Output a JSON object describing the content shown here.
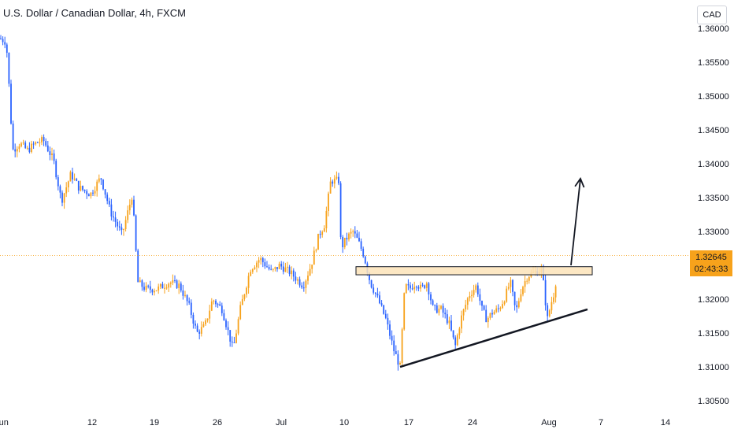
{
  "header": {
    "title": "U.S. Dollar / Canadian Dollar, 4h, FXCM",
    "currency_button": "CAD"
  },
  "price_tag": {
    "price": "1.32645",
    "countdown": "02:43:33"
  },
  "colors": {
    "up": "#f7a21b",
    "down": "#2962ff",
    "priceLine": "#f7a21b",
    "zoneFill": "#fbe3b8",
    "trendline": "#131722"
  },
  "chart_data": {
    "type": "candlestick",
    "title": "U.S. Dollar / Canadian Dollar, 4h, FXCM",
    "x_tick_labels": [
      "Jun",
      "12",
      "19",
      "26",
      "Jul",
      "10",
      "17",
      "24",
      "Aug",
      "7",
      "14"
    ],
    "y_tick_labels": [
      "1.36000",
      "1.35500",
      "1.35000",
      "1.34500",
      "1.34000",
      "1.33500",
      "1.33000",
      "1.32500",
      "1.32000",
      "1.31500",
      "1.31000",
      "1.30500"
    ],
    "ylim": [
      1.3035,
      1.3615
    ],
    "current_price": 1.32645,
    "price_path": [
      [
        0,
        1.3585
      ],
      [
        8,
        1.358
      ],
      [
        12,
        1.3505
      ],
      [
        16,
        1.342
      ],
      [
        25,
        1.343
      ],
      [
        35,
        1.342
      ],
      [
        45,
        1.343
      ],
      [
        55,
        1.3435
      ],
      [
        68,
        1.3405
      ],
      [
        78,
        1.3345
      ],
      [
        90,
        1.3385
      ],
      [
        100,
        1.3365
      ],
      [
        115,
        1.3355
      ],
      [
        128,
        1.338
      ],
      [
        140,
        1.333
      ],
      [
        155,
        1.3295
      ],
      [
        168,
        1.3355
      ],
      [
        175,
        1.3225
      ],
      [
        185,
        1.3215
      ],
      [
        200,
        1.3215
      ],
      [
        215,
        1.3225
      ],
      [
        228,
        1.322
      ],
      [
        240,
        1.319
      ],
      [
        250,
        1.315
      ],
      [
        260,
        1.316
      ],
      [
        270,
        1.32
      ],
      [
        282,
        1.3185
      ],
      [
        296,
        1.3125
      ],
      [
        305,
        1.3185
      ],
      [
        318,
        1.3245
      ],
      [
        330,
        1.326
      ],
      [
        345,
        1.324
      ],
      [
        355,
        1.325
      ],
      [
        368,
        1.324
      ],
      [
        385,
        1.322
      ],
      [
        395,
        1.325
      ],
      [
        405,
        1.3295
      ],
      [
        412,
        1.331
      ],
      [
        420,
        1.3375
      ],
      [
        430,
        1.3375
      ],
      [
        433,
        1.3275
      ],
      [
        440,
        1.329
      ],
      [
        448,
        1.33
      ],
      [
        455,
        1.3285
      ],
      [
        462,
        1.3265
      ],
      [
        470,
        1.3225
      ],
      [
        480,
        1.32
      ],
      [
        490,
        1.317
      ],
      [
        500,
        1.3125
      ],
      [
        508,
        1.31
      ],
      [
        514,
        1.322
      ],
      [
        520,
        1.3215
      ],
      [
        528,
        1.3225
      ],
      [
        535,
        1.3215
      ],
      [
        542,
        1.3225
      ],
      [
        550,
        1.3185
      ],
      [
        560,
        1.3185
      ],
      [
        570,
        1.3165
      ],
      [
        578,
        1.313
      ],
      [
        585,
        1.317
      ],
      [
        595,
        1.3205
      ],
      [
        605,
        1.322
      ],
      [
        612,
        1.3185
      ],
      [
        618,
        1.317
      ],
      [
        625,
        1.318
      ],
      [
        633,
        1.3185
      ],
      [
        640,
        1.32
      ],
      [
        648,
        1.3225
      ],
      [
        655,
        1.318
      ],
      [
        662,
        1.3215
      ],
      [
        670,
        1.3235
      ],
      [
        680,
        1.324
      ],
      [
        688,
        1.3245
      ],
      [
        695,
        1.317
      ],
      [
        700,
        1.3195
      ],
      [
        705,
        1.3215
      ],
      [
        708,
        1.3264
      ]
    ],
    "annotations": {
      "resistance_zone": {
        "price_top": 1.3248,
        "price_bottom": 1.3236,
        "from_x": 452,
        "to_x": 752
      },
      "trendline": {
        "from": [
          508,
          1.31
        ],
        "to": [
          746,
          1.3185
        ]
      },
      "arrow": {
        "from": [
          725,
          1.325
        ],
        "to": [
          737,
          1.3378
        ]
      }
    }
  }
}
